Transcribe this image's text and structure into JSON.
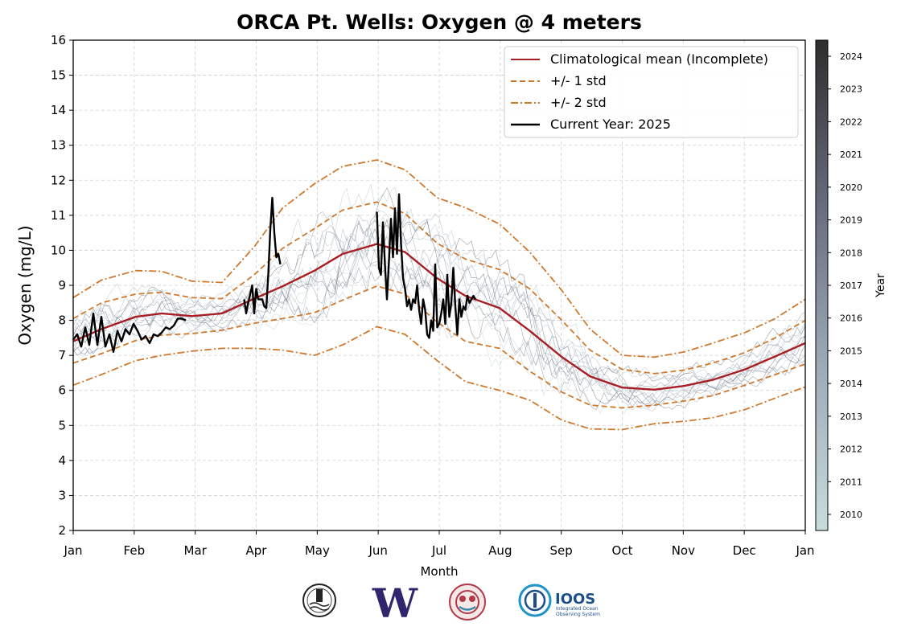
{
  "chart_data": {
    "type": "line",
    "title": "ORCA Pt. Wells: Oxygen @ 4 meters",
    "xlabel": "Month",
    "ylabel": "Oxygen (mg/L)",
    "ylim": [
      2,
      16
    ],
    "yticks": [
      2,
      3,
      4,
      5,
      6,
      7,
      8,
      9,
      10,
      11,
      12,
      13,
      14,
      15,
      16
    ],
    "xticks": [
      "Jan",
      "Feb",
      "Mar",
      "Apr",
      "May",
      "Jun",
      "Jul",
      "Aug",
      "Sep",
      "Oct",
      "Nov",
      "Dec",
      "Jan"
    ],
    "grid": true,
    "legend_position": "top-right",
    "colorbar": {
      "label": "Year",
      "ticks": [
        "2010",
        "2011",
        "2012",
        "2013",
        "2014",
        "2015",
        "2016",
        "2017",
        "2018",
        "2019",
        "2020",
        "2021",
        "2022",
        "2023",
        "2024"
      ],
      "color_low": "#c9dcdc",
      "color_high": "#2e2e2e"
    },
    "colors": {
      "mean": "#a81e25",
      "std": "#d0782c",
      "current": "#000000"
    },
    "series": [
      {
        "name": "Climatological mean (Incomplete)",
        "style": "solid",
        "x": [
          1,
          15,
          32,
          45,
          60,
          75,
          91,
          105,
          121,
          135,
          152,
          166,
          182,
          196,
          213,
          228,
          244,
          258,
          274,
          290,
          305,
          319,
          335,
          350,
          365
        ],
        "y": [
          7.4,
          7.75,
          8.1,
          8.2,
          8.12,
          8.2,
          8.62,
          8.97,
          9.42,
          9.9,
          10.18,
          9.95,
          9.2,
          8.7,
          8.35,
          7.7,
          6.95,
          6.4,
          6.08,
          6.02,
          6.13,
          6.3,
          6.6,
          6.97,
          7.35
        ]
      },
      {
        "name": "+/- 1 std",
        "style": "dashed",
        "x": [
          1,
          15,
          32,
          45,
          60,
          75,
          91,
          105,
          121,
          135,
          152,
          166,
          182,
          196,
          213,
          228,
          244,
          258,
          274,
          290,
          305,
          319,
          335,
          350,
          365
        ],
        "y": [
          8.05,
          8.5,
          8.75,
          8.8,
          8.65,
          8.62,
          9.3,
          10.05,
          10.62,
          11.15,
          11.38,
          11.05,
          10.2,
          9.75,
          9.45,
          8.9,
          8.0,
          7.15,
          6.6,
          6.48,
          6.58,
          6.78,
          7.08,
          7.5,
          8.0
        ]
      },
      {
        "name": "+/- 1 std (lower)",
        "style": "dashed",
        "x": [
          1,
          15,
          32,
          45,
          60,
          75,
          91,
          105,
          121,
          135,
          152,
          166,
          182,
          196,
          213,
          228,
          244,
          258,
          274,
          290,
          305,
          319,
          335,
          350,
          365
        ],
        "y": [
          6.78,
          7.05,
          7.42,
          7.58,
          7.62,
          7.72,
          7.92,
          8.05,
          8.22,
          8.58,
          8.98,
          8.75,
          7.95,
          7.4,
          7.2,
          6.55,
          5.95,
          5.58,
          5.5,
          5.58,
          5.7,
          5.85,
          6.15,
          6.45,
          6.75
        ]
      },
      {
        "name": "+/- 2 std",
        "style": "dashdot",
        "x": [
          1,
          15,
          32,
          45,
          60,
          75,
          91,
          105,
          121,
          135,
          152,
          166,
          182,
          196,
          213,
          228,
          244,
          258,
          274,
          290,
          305,
          319,
          335,
          350,
          365
        ],
        "y": [
          8.65,
          9.15,
          9.42,
          9.4,
          9.12,
          9.08,
          10.1,
          11.2,
          11.9,
          12.4,
          12.58,
          12.3,
          11.5,
          11.22,
          10.75,
          9.95,
          8.85,
          7.75,
          7.0,
          6.95,
          7.1,
          7.35,
          7.65,
          8.05,
          8.6
        ]
      },
      {
        "name": "+/- 2 std (lower)",
        "style": "dashdot",
        "x": [
          1,
          15,
          32,
          45,
          60,
          75,
          91,
          105,
          121,
          135,
          152,
          166,
          182,
          196,
          213,
          228,
          244,
          258,
          274,
          290,
          305,
          319,
          335,
          350,
          365
        ],
        "y": [
          6.15,
          6.45,
          6.85,
          7.0,
          7.12,
          7.2,
          7.2,
          7.15,
          7.0,
          7.3,
          7.82,
          7.6,
          6.85,
          6.25,
          6.0,
          5.72,
          5.15,
          4.9,
          4.88,
          5.05,
          5.12,
          5.22,
          5.45,
          5.78,
          6.1
        ]
      },
      {
        "name": "Current Year: 2025",
        "style": "solid",
        "segments": [
          {
            "x": [
              1,
              3,
              5,
              7,
              9,
              11,
              13,
              15,
              17,
              19,
              21,
              23,
              25,
              27,
              29,
              31,
              33,
              35,
              37,
              39,
              41,
              43,
              45,
              47,
              49,
              51,
              53,
              55,
              57
            ],
            "y": [
              7.45,
              7.6,
              7.25,
              7.8,
              7.3,
              8.2,
              7.3,
              8.1,
              7.25,
              7.6,
              7.1,
              7.7,
              7.4,
              7.75,
              7.6,
              7.9,
              7.7,
              7.45,
              7.55,
              7.35,
              7.6,
              7.55,
              7.65,
              7.8,
              7.75,
              7.85,
              8.05,
              8.05,
              8.0
            ]
          },
          {
            "x": [
              86,
              87,
              88,
              90,
              91,
              92,
              93,
              95,
              96,
              97,
              98,
              99,
              100,
              101,
              102,
              103,
              104
            ],
            "y": [
              8.6,
              8.2,
              8.5,
              9.0,
              8.2,
              8.9,
              8.6,
              8.6,
              8.4,
              8.35,
              9.3,
              10.6,
              11.5,
              10.5,
              9.8,
              9.9,
              9.6
            ]
          },
          {
            "x": [
              152,
              153,
              154,
              155,
              156,
              157,
              158,
              159,
              160,
              161,
              162,
              163,
              164,
              165,
              166,
              167,
              168,
              169,
              170,
              171,
              172,
              173,
              174,
              175,
              176,
              177,
              178,
              179,
              180,
              181,
              182,
              183,
              184,
              185,
              186,
              187,
              188,
              189,
              190,
              191,
              192,
              193,
              194,
              195,
              196,
              197,
              198,
              199,
              200,
              201
            ],
            "y": [
              11.1,
              9.5,
              9.3,
              10.8,
              9.6,
              8.6,
              9.7,
              10.9,
              9.8,
              11.2,
              9.9,
              11.6,
              10.2,
              9.2,
              8.9,
              8.4,
              8.6,
              8.3,
              8.6,
              8.5,
              9.0,
              8.3,
              7.9,
              8.6,
              8.3,
              7.6,
              7.5,
              8.0,
              7.7,
              9.6,
              7.8,
              7.9,
              8.2,
              8.6,
              7.9,
              9.3,
              8.1,
              8.5,
              9.5,
              8.4,
              7.6,
              8.6,
              8.1,
              8.4,
              8.3,
              8.7,
              8.5,
              8.6,
              8.7,
              8.6
            ]
          }
        ]
      }
    ]
  },
  "footer": {
    "logo1_name": "seal-logo",
    "logo2_letter": "W",
    "logo3_name": "native-art-logo",
    "logo4_text": "IOOS",
    "logo4_sub1": "Integrated Ocean",
    "logo4_sub2": "Observing System"
  }
}
